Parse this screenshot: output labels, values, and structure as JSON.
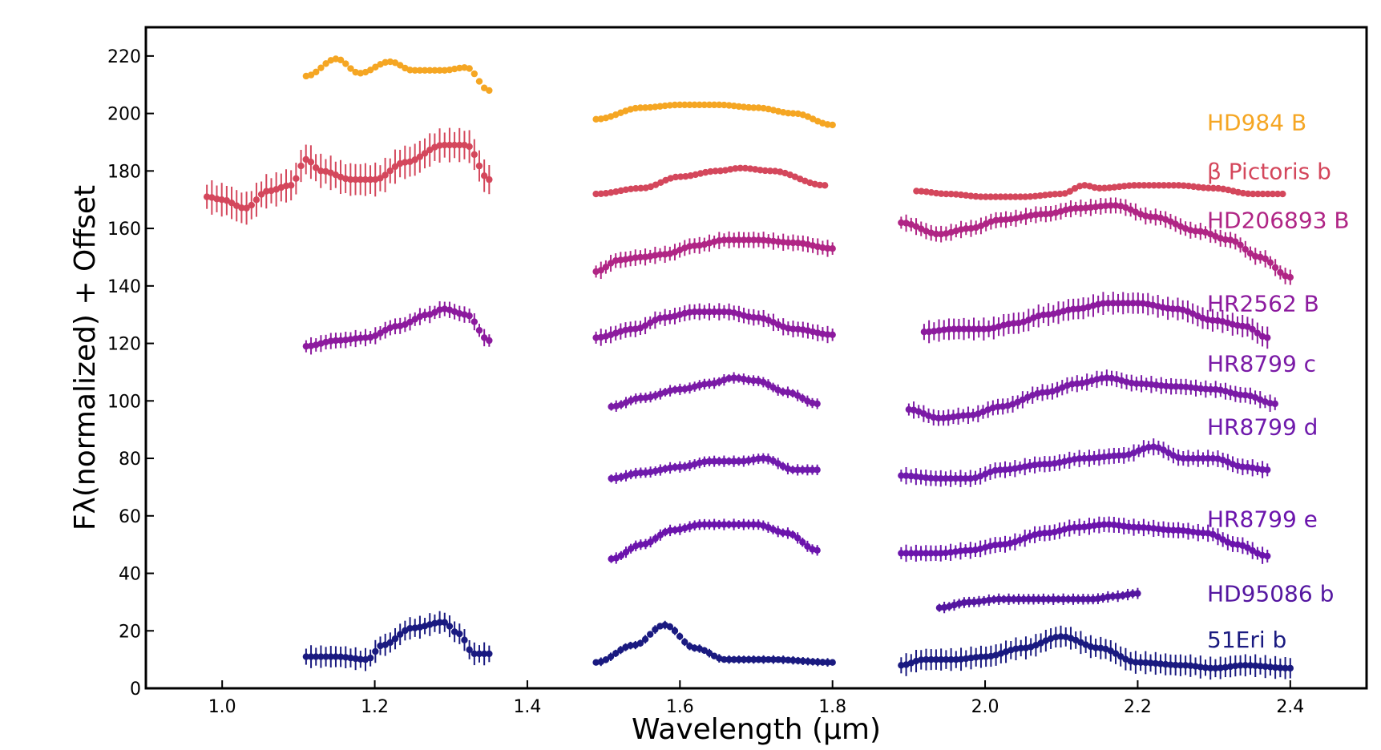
{
  "chart_data": {
    "type": "scatter",
    "title": "",
    "xlabel": "Wavelength (μm)",
    "ylabel": "Fλ(normalized) + Offset",
    "xlim": [
      0.9,
      2.5
    ],
    "ylim": [
      0,
      230
    ],
    "x_ticks": [
      1.0,
      1.2,
      1.4,
      1.6,
      1.8,
      2.0,
      2.2,
      2.4
    ],
    "y_ticks": [
      0,
      20,
      40,
      60,
      80,
      100,
      120,
      140,
      160,
      180,
      200,
      220
    ],
    "grid": false,
    "legend": "right, labels beside each spectrum",
    "series": [
      {
        "name": "HD984 B",
        "color": "#f5a623",
        "label_y": 197,
        "segments": [
          {
            "x_start": 1.11,
            "x_end": 1.35,
            "points": [
              [
                1.11,
                213
              ],
              [
                1.15,
                219
              ],
              [
                1.18,
                214
              ],
              [
                1.22,
                218
              ],
              [
                1.25,
                215
              ],
              [
                1.29,
                215
              ],
              [
                1.32,
                216
              ],
              [
                1.35,
                208
              ]
            ],
            "error": 1
          },
          {
            "x_start": 1.49,
            "x_end": 1.8,
            "points": [
              [
                1.49,
                198
              ],
              [
                1.55,
                202
              ],
              [
                1.6,
                203
              ],
              [
                1.65,
                203
              ],
              [
                1.7,
                202
              ],
              [
                1.75,
                200
              ],
              [
                1.8,
                196
              ]
            ],
            "error": 0.5
          }
        ]
      },
      {
        "name": "β Pictoris b",
        "color": "#d4475c",
        "label_y": 180,
        "segments": [
          {
            "x_start": 0.98,
            "x_end": 1.35,
            "points": [
              [
                0.98,
                171
              ],
              [
                1.0,
                170
              ],
              [
                1.03,
                167
              ],
              [
                1.06,
                173
              ],
              [
                1.09,
                175
              ],
              [
                1.11,
                184
              ],
              [
                1.13,
                180
              ],
              [
                1.17,
                177
              ],
              [
                1.2,
                177
              ],
              [
                1.24,
                183
              ],
              [
                1.29,
                189
              ],
              [
                1.32,
                189
              ],
              [
                1.35,
                177
              ]
            ],
            "error": 6
          },
          {
            "x_start": 1.49,
            "x_end": 1.79,
            "points": [
              [
                1.49,
                172
              ],
              [
                1.55,
                174
              ],
              [
                1.6,
                178
              ],
              [
                1.65,
                180
              ],
              [
                1.68,
                181
              ],
              [
                1.72,
                180
              ],
              [
                1.79,
                175
              ]
            ],
            "error": 1
          },
          {
            "x_start": 1.91,
            "x_end": 2.39,
            "points": [
              [
                1.91,
                173
              ],
              [
                1.95,
                172
              ],
              [
                2.0,
                171
              ],
              [
                2.05,
                171
              ],
              [
                2.1,
                172
              ],
              [
                2.13,
                175
              ],
              [
                2.15,
                174
              ],
              [
                2.2,
                175
              ],
              [
                2.25,
                175
              ],
              [
                2.3,
                174
              ],
              [
                2.35,
                172
              ],
              [
                2.39,
                172
              ]
            ],
            "error": 0.5
          }
        ]
      },
      {
        "name": "HD206893 B",
        "color": "#b02585",
        "label_y": 163,
        "segments": [
          {
            "x_start": 1.49,
            "x_end": 1.8,
            "points": [
              [
                1.49,
                145
              ],
              [
                1.52,
                149
              ],
              [
                1.55,
                150
              ],
              [
                1.58,
                151
              ],
              [
                1.62,
                154
              ],
              [
                1.66,
                156
              ],
              [
                1.7,
                156
              ],
              [
                1.75,
                155
              ],
              [
                1.8,
                153
              ]
            ],
            "error": 3
          },
          {
            "x_start": 1.89,
            "x_end": 2.4,
            "points": [
              [
                1.89,
                162
              ],
              [
                1.94,
                158
              ],
              [
                1.98,
                160
              ],
              [
                2.02,
                163
              ],
              [
                2.08,
                165
              ],
              [
                2.12,
                167
              ],
              [
                2.17,
                168
              ],
              [
                2.22,
                164
              ],
              [
                2.28,
                159
              ],
              [
                2.32,
                156
              ],
              [
                2.36,
                150
              ],
              [
                2.4,
                143
              ]
            ],
            "error": 3
          }
        ]
      },
      {
        "name": "HR2562 B",
        "color": "#8c1a9e",
        "label_y": 134,
        "segments": [
          {
            "x_start": 1.11,
            "x_end": 1.35,
            "points": [
              [
                1.11,
                119
              ],
              [
                1.15,
                121
              ],
              [
                1.19,
                122
              ],
              [
                1.23,
                126
              ],
              [
                1.27,
                130
              ],
              [
                1.29,
                132
              ],
              [
                1.32,
                130
              ],
              [
                1.35,
                121
              ]
            ],
            "error": 3
          },
          {
            "x_start": 1.49,
            "x_end": 1.8,
            "points": [
              [
                1.49,
                122
              ],
              [
                1.54,
                125
              ],
              [
                1.58,
                129
              ],
              [
                1.62,
                131
              ],
              [
                1.66,
                131
              ],
              [
                1.7,
                129
              ],
              [
                1.75,
                125
              ],
              [
                1.8,
                123
              ]
            ],
            "error": 3
          },
          {
            "x_start": 1.92,
            "x_end": 2.37,
            "points": [
              [
                1.92,
                124
              ],
              [
                1.96,
                125
              ],
              [
                2.0,
                125
              ],
              [
                2.04,
                127
              ],
              [
                2.08,
                130
              ],
              [
                2.12,
                132
              ],
              [
                2.16,
                134
              ],
              [
                2.2,
                134
              ],
              [
                2.25,
                132
              ],
              [
                2.3,
                128
              ],
              [
                2.34,
                126
              ],
              [
                2.37,
                122
              ]
            ],
            "error": 4
          }
        ]
      },
      {
        "name": "HR8799 c",
        "color": "#7a1aa6",
        "label_y": 113,
        "segments": [
          {
            "x_start": 1.51,
            "x_end": 1.78,
            "points": [
              [
                1.51,
                98
              ],
              [
                1.55,
                101
              ],
              [
                1.6,
                104
              ],
              [
                1.64,
                106
              ],
              [
                1.67,
                108
              ],
              [
                1.7,
                107
              ],
              [
                1.74,
                103
              ],
              [
                1.78,
                99
              ]
            ],
            "error": 2
          },
          {
            "x_start": 1.9,
            "x_end": 2.38,
            "points": [
              [
                1.9,
                97
              ],
              [
                1.94,
                94
              ],
              [
                1.98,
                95
              ],
              [
                2.02,
                98
              ],
              [
                2.08,
                103
              ],
              [
                2.12,
                106
              ],
              [
                2.16,
                108
              ],
              [
                2.2,
                106
              ],
              [
                2.25,
                105
              ],
              [
                2.3,
                104
              ],
              [
                2.34,
                102
              ],
              [
                2.38,
                99
              ]
            ],
            "error": 3
          }
        ]
      },
      {
        "name": "HR8799 d",
        "color": "#6f1aac",
        "label_y": 91,
        "segments": [
          {
            "x_start": 1.51,
            "x_end": 1.78,
            "points": [
              [
                1.51,
                73
              ],
              [
                1.55,
                75
              ],
              [
                1.6,
                77
              ],
              [
                1.64,
                79
              ],
              [
                1.68,
                79
              ],
              [
                1.71,
                80
              ],
              [
                1.75,
                76
              ],
              [
                1.78,
                76
              ]
            ],
            "error": 2
          },
          {
            "x_start": 1.89,
            "x_end": 2.37,
            "points": [
              [
                1.89,
                74
              ],
              [
                1.94,
                73
              ],
              [
                1.98,
                73
              ],
              [
                2.02,
                76
              ],
              [
                2.08,
                78
              ],
              [
                2.13,
                80
              ],
              [
                2.18,
                81
              ],
              [
                2.22,
                84
              ],
              [
                2.26,
                80
              ],
              [
                2.3,
                80
              ],
              [
                2.34,
                77
              ],
              [
                2.37,
                76
              ]
            ],
            "error": 3
          }
        ]
      },
      {
        "name": "HR8799 e",
        "color": "#6b14ac",
        "label_y": 59,
        "segments": [
          {
            "x_start": 1.51,
            "x_end": 1.78,
            "points": [
              [
                1.51,
                45
              ],
              [
                1.55,
                50
              ],
              [
                1.59,
                55
              ],
              [
                1.63,
                57
              ],
              [
                1.67,
                57
              ],
              [
                1.7,
                57
              ],
              [
                1.74,
                54
              ],
              [
                1.78,
                48
              ]
            ],
            "error": 2
          },
          {
            "x_start": 1.89,
            "x_end": 2.37,
            "points": [
              [
                1.89,
                47
              ],
              [
                1.94,
                47
              ],
              [
                1.98,
                48
              ],
              [
                2.02,
                50
              ],
              [
                2.08,
                54
              ],
              [
                2.12,
                56
              ],
              [
                2.16,
                57
              ],
              [
                2.2,
                56
              ],
              [
                2.25,
                55
              ],
              [
                2.29,
                54
              ],
              [
                2.33,
                50
              ],
              [
                2.37,
                46
              ]
            ],
            "error": 3
          }
        ]
      },
      {
        "name": "HD95086 b",
        "color": "#5416a0",
        "label_y": 33,
        "segments": [
          {
            "x_start": 1.94,
            "x_end": 2.2,
            "points": [
              [
                1.94,
                28
              ],
              [
                1.98,
                30
              ],
              [
                2.02,
                31
              ],
              [
                2.06,
                31
              ],
              [
                2.1,
                31
              ],
              [
                2.14,
                31
              ],
              [
                2.17,
                32
              ],
              [
                2.2,
                33
              ]
            ],
            "error": 2
          }
        ]
      },
      {
        "name": "51Eri b",
        "color": "#1a1a80",
        "label_y": 17,
        "segments": [
          {
            "x_start": 1.11,
            "x_end": 1.35,
            "points": [
              [
                1.11,
                11
              ],
              [
                1.15,
                11
              ],
              [
                1.19,
                10
              ],
              [
                1.21,
                15
              ],
              [
                1.25,
                21
              ],
              [
                1.29,
                23
              ],
              [
                1.31,
                19
              ],
              [
                1.33,
                12
              ],
              [
                1.35,
                12
              ]
            ],
            "error": 4
          },
          {
            "x_start": 1.49,
            "x_end": 1.8,
            "points": [
              [
                1.49,
                9
              ],
              [
                1.54,
                15
              ],
              [
                1.58,
                22
              ],
              [
                1.62,
                14
              ],
              [
                1.66,
                10
              ],
              [
                1.72,
                10
              ],
              [
                1.8,
                9
              ]
            ],
            "error": 1.5
          },
          {
            "x_start": 1.89,
            "x_end": 2.4,
            "points": [
              [
                1.89,
                8
              ],
              [
                1.92,
                10
              ],
              [
                1.96,
                10
              ],
              [
                2.0,
                11
              ],
              [
                2.05,
                14
              ],
              [
                2.1,
                18
              ],
              [
                2.15,
                14
              ],
              [
                2.2,
                9
              ],
              [
                2.26,
                8
              ],
              [
                2.3,
                7
              ],
              [
                2.34,
                8
              ],
              [
                2.4,
                7
              ]
            ],
            "error": 4
          }
        ]
      }
    ]
  }
}
